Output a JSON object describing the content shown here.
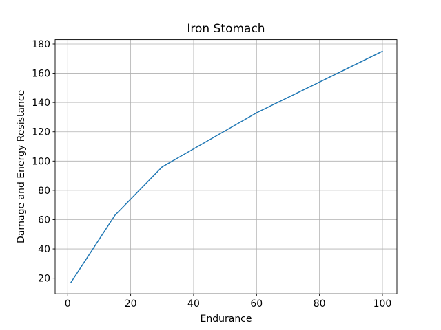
{
  "chart_data": {
    "type": "line",
    "title": "Iron Stomach",
    "xlabel": "Endurance",
    "ylabel": "Damage and Energy Resistance",
    "x": [
      1,
      15,
      30,
      60,
      100
    ],
    "y": [
      17,
      63,
      96,
      133,
      175
    ],
    "xticks": [
      0,
      20,
      40,
      60,
      80,
      100
    ],
    "yticks": [
      20,
      40,
      60,
      80,
      100,
      120,
      140,
      160,
      180
    ],
    "xlim": [
      -4.0,
      104.6
    ],
    "ylim": [
      9.4,
      183.0
    ],
    "grid": true,
    "legend_visible": false,
    "line_color": "#1f77b4",
    "grid_color": "#b0b0b0",
    "background_color": "#ffffff"
  }
}
